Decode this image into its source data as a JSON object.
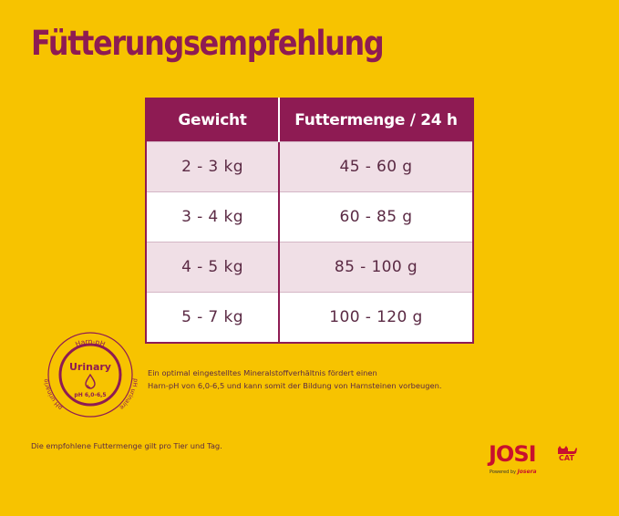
{
  "title": "Fütterungsempfehlung",
  "table": {
    "headers": [
      "Gewicht",
      "Futtermenge / 24 h"
    ],
    "rows": [
      {
        "weight": "2 - 3 kg",
        "amount": "45 - 60 g"
      },
      {
        "weight": "3 - 4 kg",
        "amount": "60 - 85 g"
      },
      {
        "weight": "4 - 5 kg",
        "amount": "85 - 100 g"
      },
      {
        "weight": "5 - 7 kg",
        "amount": "100 - 120 g"
      }
    ]
  },
  "badge": {
    "ring_top": "Harn-pH",
    "ring_left": "pH urinario",
    "ring_right": "pH urinaire",
    "label": "Urinary",
    "ph_value": "pH 6,0-6,5",
    "icon": "drop-icon"
  },
  "note": {
    "line1": "Ein optimal eingestelltes Mineralstoffverhältnis fördert einen",
    "line2": "Harn-pH von 6,0-6,5 und kann somit der Bildung von Harnsteinen vorbeugen."
  },
  "footer": "Die empfohlene Futtermenge gilt pro Tier und Tag.",
  "logo": {
    "brand": "JOSI",
    "sub": "CAT",
    "powered_by": "Powered by",
    "maker": "Josera",
    "icon": "cat-icon"
  },
  "colors": {
    "background": "#f7c300",
    "primary": "#8e1b53",
    "row_shade": "#f0dfe6",
    "brand_red": "#c8102e"
  }
}
